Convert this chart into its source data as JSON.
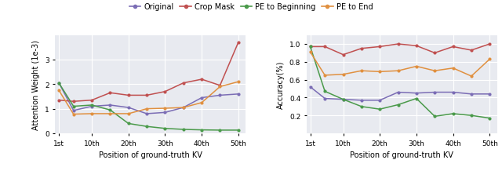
{
  "x_labels": [
    "1st",
    "10th",
    "20th",
    "30th",
    "40th",
    "50th"
  ],
  "x_tick_pos": [
    1,
    10,
    20,
    30,
    40,
    50
  ],
  "x_values": [
    1,
    5,
    10,
    15,
    20,
    25,
    30,
    35,
    40,
    45,
    50
  ],
  "attn_original": [
    2.05,
    0.93,
    1.1,
    1.15,
    1.05,
    0.8,
    0.85,
    1.05,
    1.45,
    1.55,
    1.6
  ],
  "attn_crop_mask": [
    1.35,
    1.3,
    1.35,
    1.65,
    1.55,
    1.55,
    1.7,
    2.05,
    2.2,
    1.95,
    3.7
  ],
  "attn_pe_begin": [
    2.05,
    1.1,
    1.15,
    0.95,
    0.4,
    0.28,
    0.2,
    0.16,
    0.14,
    0.13,
    0.13
  ],
  "attn_pe_end": [
    1.75,
    0.78,
    0.8,
    0.8,
    0.8,
    1.0,
    1.02,
    1.05,
    1.25,
    1.9,
    2.1
  ],
  "acc_original": [
    0.52,
    0.39,
    0.38,
    0.37,
    0.37,
    0.46,
    0.45,
    0.46,
    0.46,
    0.44,
    0.44
  ],
  "acc_crop_mask": [
    0.97,
    0.97,
    0.88,
    0.95,
    0.97,
    1.0,
    0.98,
    0.9,
    0.97,
    0.93,
    1.0
  ],
  "acc_pe_begin": [
    0.97,
    0.47,
    0.38,
    0.3,
    0.27,
    0.32,
    0.39,
    0.19,
    0.22,
    0.2,
    0.17
  ],
  "acc_pe_end": [
    0.91,
    0.65,
    0.66,
    0.7,
    0.69,
    0.7,
    0.75,
    0.7,
    0.73,
    0.64,
    0.83
  ],
  "color_original": "#7b6db5",
  "color_crop_mask": "#c05050",
  "color_pe_begin": "#4a9a4a",
  "color_pe_end": "#e09040",
  "legend_labels": [
    "Original",
    "Crop Mask",
    "PE to Beginning",
    "PE to End"
  ],
  "bg_color": "#e8eaf0",
  "attn_ylim": [
    0,
    4.0
  ],
  "attn_yticks": [
    0,
    1,
    2,
    3
  ],
  "acc_ylim": [
    0.0,
    1.1
  ],
  "acc_yticks": [
    0.2,
    0.4,
    0.6,
    0.8,
    1.0
  ],
  "xlabel": "Position of ground-truth KV",
  "ylabel_left": "Attention Weight (1e-3)",
  "ylabel_right": "Accuracy(%)"
}
